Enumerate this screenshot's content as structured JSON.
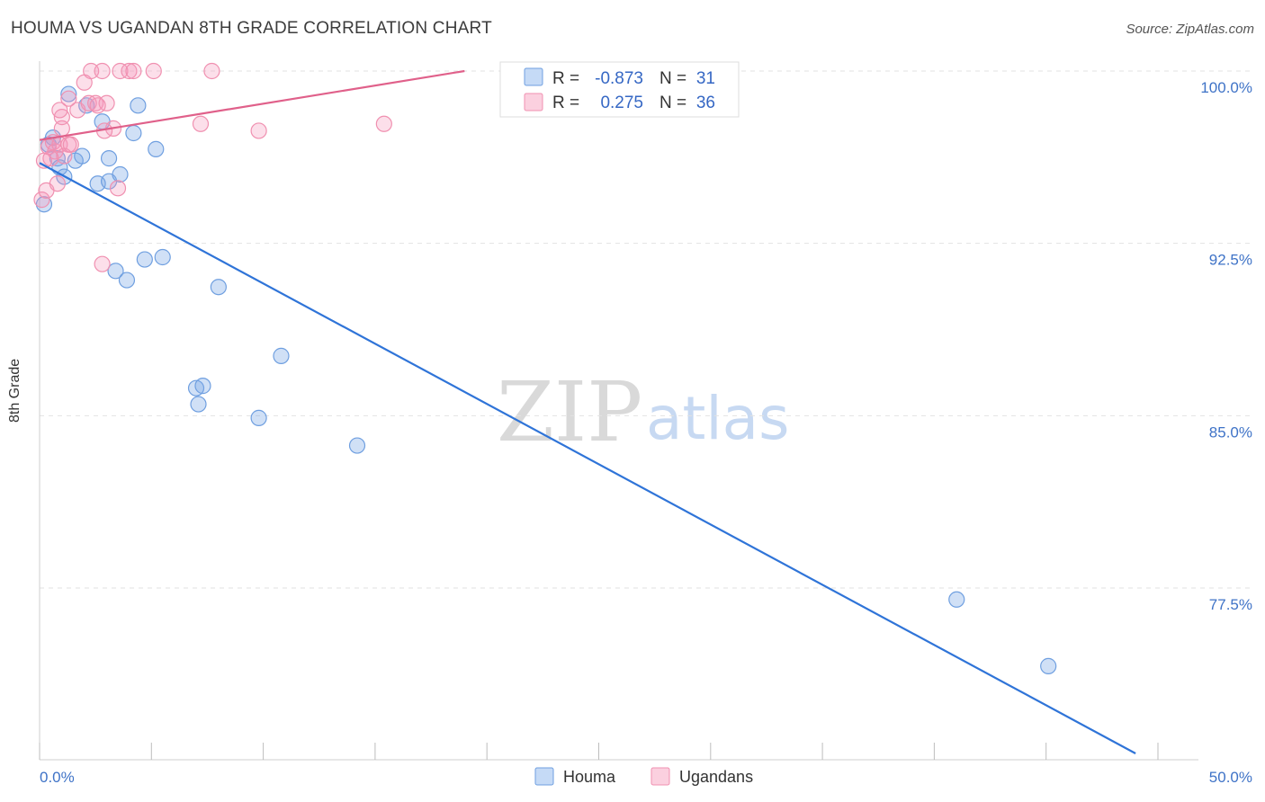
{
  "title": "HOUMA VS UGANDAN 8TH GRADE CORRELATION CHART",
  "source": "Source: ZipAtlas.com",
  "watermark": {
    "zip": "ZIP",
    "atlas": "atlas"
  },
  "colors": {
    "houma": "#6f9fe0",
    "ugandans": "#f090b0",
    "houma_line": "#2f74d8",
    "ugandans_line": "#e0608a"
  },
  "legend": {
    "r_label": "R =",
    "n_label": "N =",
    "houma": {
      "r": "-0.873",
      "n": "31"
    },
    "ugandans": {
      "r": "0.275",
      "n": "36"
    }
  },
  "chart_data": {
    "type": "scatter",
    "title": "HOUMA VS UGANDAN 8TH GRADE CORRELATION CHART",
    "ylabel": "8th Grade",
    "xlabel": "",
    "xlim": [
      0,
      50
    ],
    "ylim": [
      70.3,
      101.2
    ],
    "x_tick_labels": [
      "0.0%",
      "50.0%"
    ],
    "y_ticks": [
      100.0,
      92.5,
      85.0,
      77.5
    ],
    "y_tick_labels": [
      "100.0%",
      "92.5%",
      "85.0%",
      "77.5%"
    ],
    "series": [
      {
        "name": "Houma",
        "points": [
          [
            0.2,
            94.2
          ],
          [
            0.4,
            96.8
          ],
          [
            0.6,
            97.1
          ],
          [
            0.8,
            96.2
          ],
          [
            0.9,
            95.8
          ],
          [
            1.1,
            95.4
          ],
          [
            1.3,
            99.0
          ],
          [
            1.6,
            96.1
          ],
          [
            1.9,
            96.3
          ],
          [
            2.1,
            98.5
          ],
          [
            2.6,
            95.1
          ],
          [
            2.8,
            97.8
          ],
          [
            3.1,
            95.2
          ],
          [
            3.1,
            96.2
          ],
          [
            3.6,
            95.5
          ],
          [
            4.2,
            97.3
          ],
          [
            4.4,
            98.5
          ],
          [
            5.2,
            96.6
          ],
          [
            3.4,
            91.3
          ],
          [
            3.9,
            90.9
          ],
          [
            4.7,
            91.8
          ],
          [
            5.5,
            91.9
          ],
          [
            8.0,
            90.6
          ],
          [
            7.0,
            86.2
          ],
          [
            7.3,
            86.3
          ],
          [
            7.1,
            85.5
          ],
          [
            9.8,
            84.9
          ],
          [
            10.8,
            87.6
          ],
          [
            14.2,
            83.7
          ],
          [
            41.0,
            77.0
          ],
          [
            45.1,
            74.1
          ]
        ]
      },
      {
        "name": "Ugandans",
        "points": [
          [
            0.1,
            94.4
          ],
          [
            0.2,
            96.1
          ],
          [
            0.3,
            94.8
          ],
          [
            0.4,
            96.7
          ],
          [
            0.6,
            96.9
          ],
          [
            0.7,
            96.5
          ],
          [
            0.9,
            96.8
          ],
          [
            0.8,
            95.1
          ],
          [
            1.0,
            97.5
          ],
          [
            1.0,
            98.0
          ],
          [
            0.9,
            98.3
          ],
          [
            1.3,
            98.8
          ],
          [
            1.3,
            96.8
          ],
          [
            1.7,
            98.3
          ],
          [
            2.0,
            99.5
          ],
          [
            2.2,
            98.6
          ],
          [
            2.3,
            100.0
          ],
          [
            2.5,
            98.6
          ],
          [
            2.8,
            100.0
          ],
          [
            3.0,
            98.6
          ],
          [
            3.3,
            97.5
          ],
          [
            3.6,
            100.0
          ],
          [
            3.5,
            94.9
          ],
          [
            4.0,
            100.0
          ],
          [
            4.2,
            100.0
          ],
          [
            5.1,
            100.0
          ],
          [
            7.2,
            97.7
          ],
          [
            7.7,
            100.0
          ],
          [
            9.8,
            97.4
          ],
          [
            15.4,
            97.7
          ],
          [
            2.8,
            91.6
          ],
          [
            1.1,
            96.3
          ],
          [
            0.5,
            96.2
          ],
          [
            1.4,
            96.8
          ],
          [
            2.9,
            97.4
          ],
          [
            2.6,
            98.5
          ]
        ]
      }
    ],
    "trend_lines": [
      {
        "name": "Houma",
        "x": [
          0.0,
          49.0
        ],
        "y": [
          96.0,
          70.3
        ]
      },
      {
        "name": "Ugandans",
        "x": [
          0.0,
          19.0
        ],
        "y": [
          97.0,
          100.0
        ]
      }
    ]
  },
  "bottom_legend": [
    "Houma",
    "Ugandans"
  ]
}
